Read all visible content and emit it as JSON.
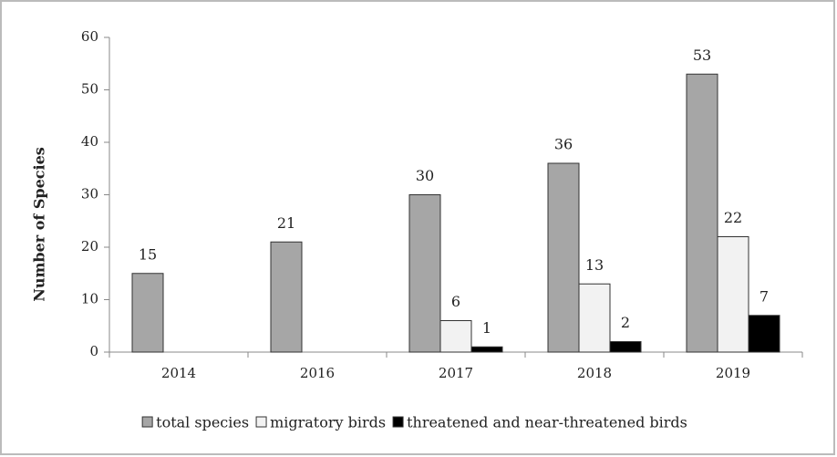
{
  "chart_data": {
    "type": "bar",
    "y_label": "Number of Species",
    "categories": [
      "2014",
      "2016",
      "2017",
      "2018",
      "2019"
    ],
    "series": [
      {
        "name": "total species",
        "color": "#a6a6a6",
        "values": [
          15,
          21,
          30,
          36,
          53
        ]
      },
      {
        "name": "migratory birds",
        "color": "#f2f2f2",
        "values": [
          null,
          null,
          6,
          13,
          22
        ]
      },
      {
        "name": "threatened and near-threatened birds",
        "color": "#000000",
        "values": [
          null,
          null,
          1,
          2,
          7
        ]
      }
    ],
    "ylim": [
      0,
      60
    ],
    "yticks": [
      0,
      10,
      20,
      30,
      40,
      50,
      60
    ],
    "grid": false,
    "legend": "bottom"
  }
}
